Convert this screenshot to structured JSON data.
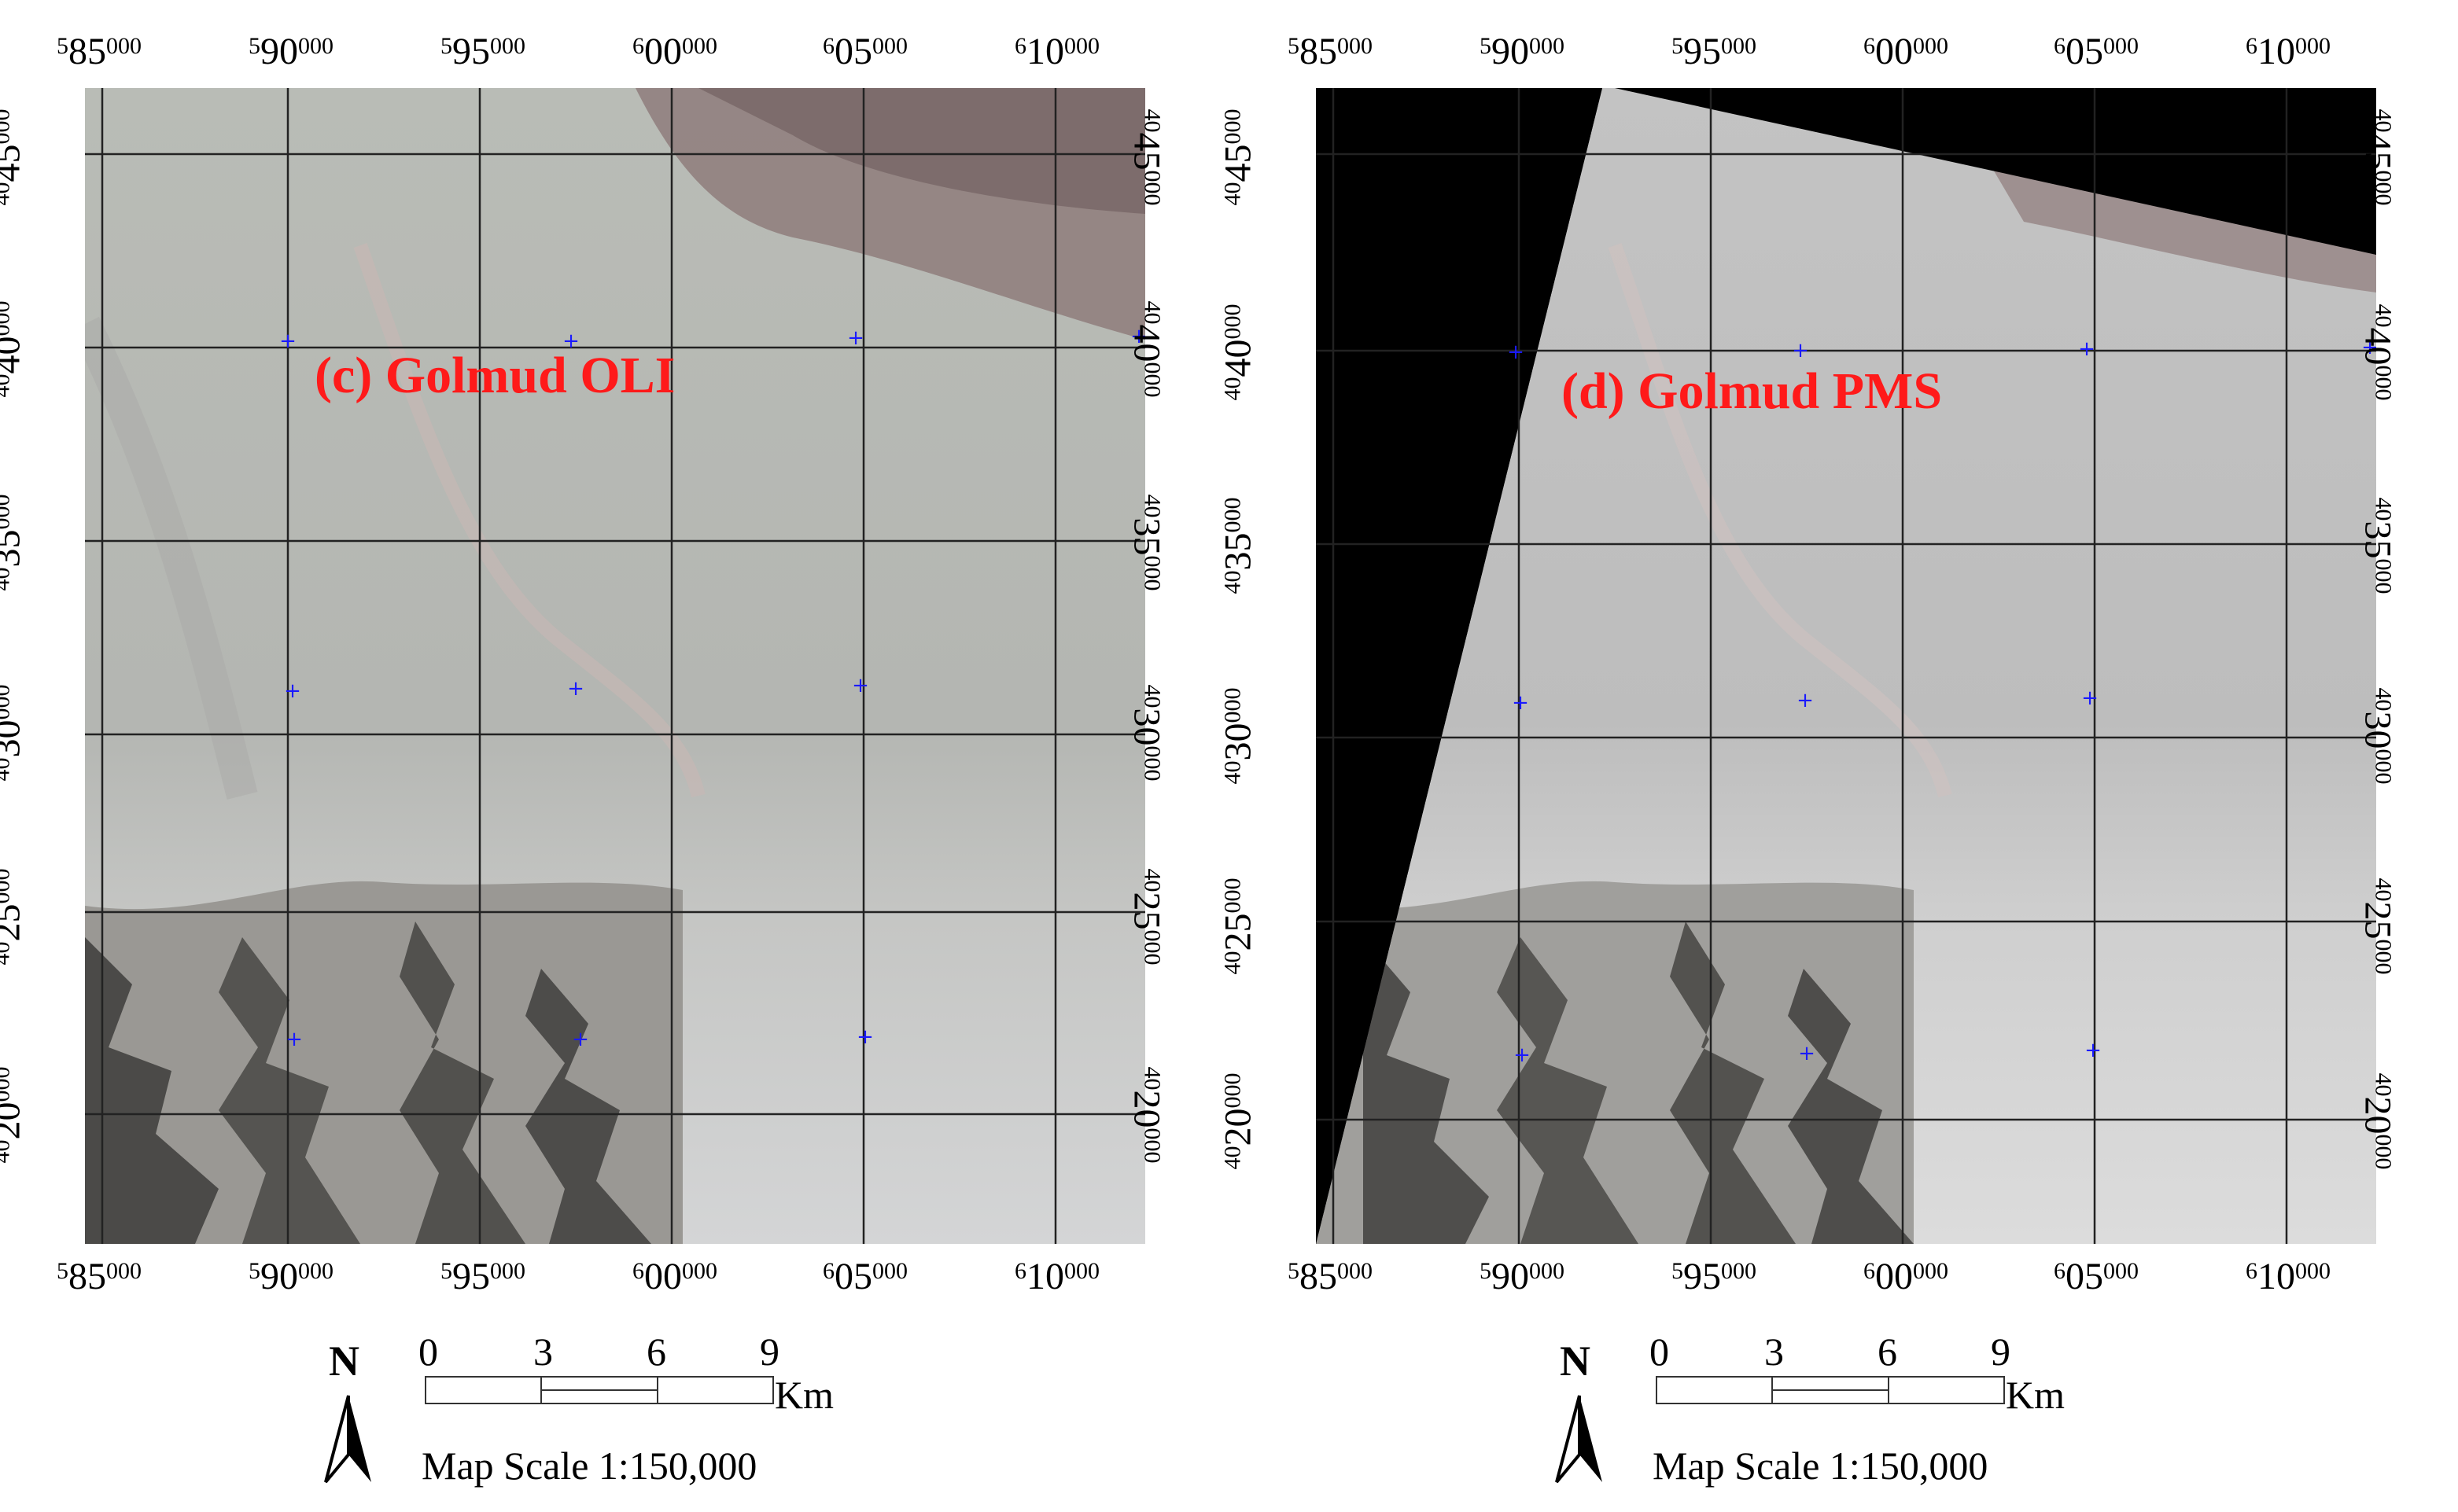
{
  "figure": {
    "panels": [
      {
        "title": "(c) Golmud OLI",
        "sensor": "OLI",
        "x_ticks": [
          {
            "base": "5",
            "main": "85",
            "sup": "000"
          },
          {
            "base": "5",
            "main": "90",
            "sup": "000"
          },
          {
            "base": "5",
            "main": "95",
            "sup": "000"
          },
          {
            "base": "6",
            "main": "00",
            "sup": "000"
          },
          {
            "base": "6",
            "main": "05",
            "sup": "000"
          },
          {
            "base": "6",
            "main": "10",
            "sup": "000"
          }
        ],
        "y_ticks": [
          {
            "base": "40",
            "main": "45",
            "sup": "000"
          },
          {
            "base": "40",
            "main": "40",
            "sup": "000"
          },
          {
            "base": "40",
            "main": "35",
            "sup": "000"
          },
          {
            "base": "40",
            "main": "30",
            "sup": "000"
          },
          {
            "base": "40",
            "main": "25",
            "sup": "000"
          },
          {
            "base": "40",
            "main": "20",
            "sup": "000"
          }
        ]
      },
      {
        "title": "(d) Golmud PMS",
        "sensor": "PMS",
        "x_ticks": [
          {
            "base": "5",
            "main": "85",
            "sup": "000"
          },
          {
            "base": "5",
            "main": "90",
            "sup": "000"
          },
          {
            "base": "5",
            "main": "95",
            "sup": "000"
          },
          {
            "base": "6",
            "main": "00",
            "sup": "000"
          },
          {
            "base": "6",
            "main": "05",
            "sup": "000"
          },
          {
            "base": "6",
            "main": "10",
            "sup": "000"
          }
        ],
        "y_ticks": [
          {
            "base": "40",
            "main": "45",
            "sup": "000"
          },
          {
            "base": "40",
            "main": "40",
            "sup": "000"
          },
          {
            "base": "40",
            "main": "35",
            "sup": "000"
          },
          {
            "base": "40",
            "main": "30",
            "sup": "000"
          },
          {
            "base": "40",
            "main": "25",
            "sup": "000"
          },
          {
            "base": "40",
            "main": "20",
            "sup": "000"
          }
        ]
      }
    ],
    "scale": {
      "north_label": "N",
      "ticks": [
        "0",
        "3",
        "6",
        "9"
      ],
      "unit": "Km",
      "map_scale": "Map Scale 1:150,000"
    },
    "colors": {
      "title": "#ff1a1a",
      "grid": "#222222",
      "marker": "#1a1aff",
      "no_data": "#000000"
    },
    "icons": {
      "north_arrow": "north-arrow-icon",
      "control_point": "plus-marker-icon"
    }
  }
}
